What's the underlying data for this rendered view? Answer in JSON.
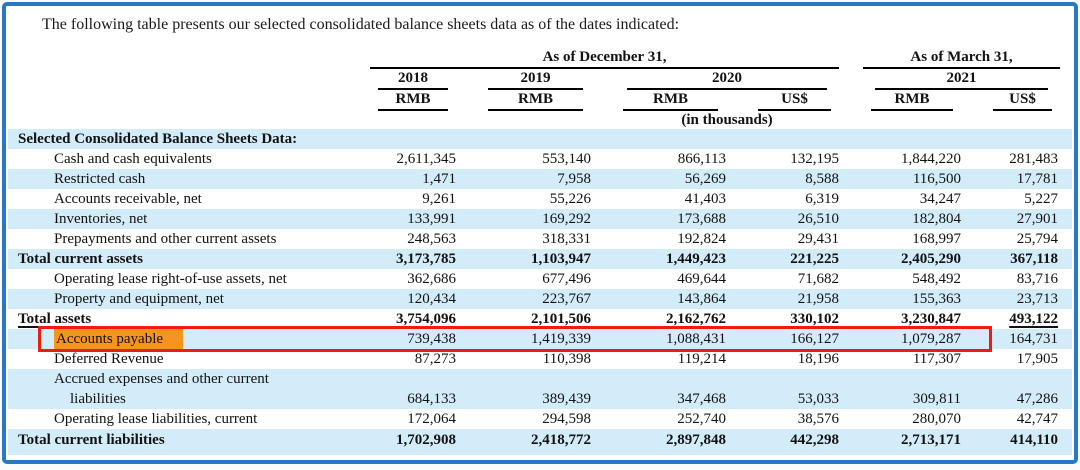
{
  "page": {
    "intro": "The following table presents our selected consolidated balance sheets data as of the dates indicated:"
  },
  "header": {
    "group_dec": "As of December 31,",
    "group_mar": "As of March 31,",
    "years": {
      "y2018": "2018",
      "y2019": "2019",
      "y2020": "2020",
      "y2021": "2021"
    },
    "currencies": [
      "RMB",
      "RMB",
      "RMB",
      "US$",
      "RMB",
      "US$"
    ],
    "units_note": "(in thousands)"
  },
  "table": {
    "section_title": "Selected Consolidated Balance Sheets Data:",
    "rows": [
      {
        "label": "Cash and cash equivalents",
        "values": [
          "2,611,345",
          "553,140",
          "866,113",
          "132,195",
          "1,844,220",
          "281,483"
        ]
      },
      {
        "label": "Restricted cash",
        "values": [
          "1,471",
          "7,958",
          "56,269",
          "8,588",
          "116,500",
          "17,781"
        ]
      },
      {
        "label": "Accounts receivable, net",
        "values": [
          "9,261",
          "55,226",
          "41,403",
          "6,319",
          "34,247",
          "5,227"
        ]
      },
      {
        "label": "Inventories, net",
        "values": [
          "133,991",
          "169,292",
          "173,688",
          "26,510",
          "182,804",
          "27,901"
        ]
      },
      {
        "label": "Prepayments and other current assets",
        "values": [
          "248,563",
          "318,331",
          "192,824",
          "29,431",
          "168,997",
          "25,794"
        ]
      },
      {
        "label": "Total current assets",
        "values": [
          "3,173,785",
          "1,103,947",
          "1,449,423",
          "221,225",
          "2,405,290",
          "367,118"
        ]
      },
      {
        "label": "Operating lease right-of-use assets, net",
        "values": [
          "362,686",
          "677,496",
          "469,644",
          "71,682",
          "548,492",
          "83,716"
        ]
      },
      {
        "label": "Property and equipment, net",
        "values": [
          "120,434",
          "223,767",
          "143,864",
          "21,958",
          "155,363",
          "23,713"
        ]
      },
      {
        "label": "Total assets",
        "values": [
          "3,754,096",
          "2,101,506",
          "2,162,762",
          "330,102",
          "3,230,847",
          "493,122"
        ]
      },
      {
        "label": "Accounts payable",
        "values": [
          "739,438",
          "1,419,339",
          "1,088,431",
          "166,127",
          "1,079,287",
          "164,731"
        ]
      },
      {
        "label": "Deferred Revenue",
        "values": [
          "87,273",
          "110,398",
          "119,214",
          "18,196",
          "117,307",
          "17,905"
        ]
      },
      {
        "label_line1": "Accrued expenses and other current",
        "label_line2": "liabilities",
        "values": [
          "684,133",
          "389,439",
          "347,468",
          "53,033",
          "309,811",
          "47,286"
        ]
      },
      {
        "label": "Operating lease liabilities, current",
        "values": [
          "172,064",
          "294,598",
          "252,740",
          "38,576",
          "280,070",
          "42,747"
        ]
      },
      {
        "label": "Total current liabilities",
        "values": [
          "1,702,908",
          "2,418,772",
          "2,897,848",
          "442,298",
          "2,713,171",
          "414,110"
        ]
      }
    ]
  },
  "annotations": {
    "highlighted_label": "Accounts payable",
    "highlight_color": "#f7941d",
    "box_color": "#ed1c0e"
  },
  "colors": {
    "frame_border": "#2779c4",
    "row_stripe": "#d3ecfa",
    "text": "#121212"
  }
}
